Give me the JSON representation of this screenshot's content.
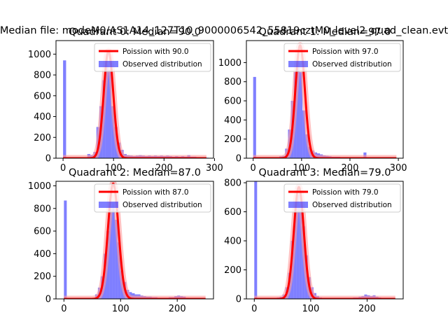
{
  "suptitle": "Median file: modeM0/AS1A14_127T10_9000006542_55819cztM0_level2_quad_clean.evt",
  "colors": {
    "observed": "#0000ff",
    "poisson": "#ff0000",
    "poisson_band": "#ff9999"
  },
  "chart_data": [
    {
      "type": "bar+line",
      "title": "Quadrant 0: Median=90.0",
      "median": 90.0,
      "xlim": [
        -14,
        298
      ],
      "ylim": [
        0,
        1130
      ],
      "xticks": [
        0,
        100,
        200,
        300
      ],
      "yticks": [
        0,
        200,
        400,
        600,
        800,
        1000
      ],
      "legend": [
        "Poission with 90.0",
        "Observed distribution"
      ],
      "legend_loc": "upper right",
      "poisson_peak": 1030,
      "bin_width": 6,
      "observed_bins": [
        [
          0,
          940
        ],
        [
          6,
          5
        ],
        [
          12,
          5
        ],
        [
          18,
          5
        ],
        [
          24,
          5
        ],
        [
          30,
          5
        ],
        [
          36,
          5
        ],
        [
          42,
          5
        ],
        [
          48,
          40
        ],
        [
          54,
          30
        ],
        [
          60,
          60
        ],
        [
          66,
          300
        ],
        [
          72,
          500
        ],
        [
          78,
          750
        ],
        [
          84,
          900
        ],
        [
          90,
          850
        ],
        [
          96,
          500
        ],
        [
          102,
          300
        ],
        [
          108,
          150
        ],
        [
          114,
          80
        ],
        [
          120,
          40
        ],
        [
          126,
          30
        ],
        [
          132,
          25
        ],
        [
          138,
          20
        ],
        [
          144,
          25
        ],
        [
          150,
          30
        ],
        [
          156,
          25
        ],
        [
          162,
          20
        ],
        [
          168,
          25
        ],
        [
          174,
          20
        ],
        [
          180,
          25
        ],
        [
          186,
          20
        ],
        [
          192,
          25
        ],
        [
          198,
          20
        ],
        [
          204,
          25
        ],
        [
          210,
          20
        ],
        [
          216,
          15
        ],
        [
          222,
          20
        ],
        [
          228,
          15
        ],
        [
          234,
          20
        ],
        [
          240,
          15
        ],
        [
          246,
          30
        ],
        [
          252,
          15
        ],
        [
          258,
          15
        ],
        [
          264,
          10
        ],
        [
          270,
          10
        ],
        [
          276,
          10
        ],
        [
          282,
          5
        ]
      ]
    },
    {
      "type": "bar+line",
      "title": "Quadrant 1: Median=97.0",
      "median": 97.0,
      "xlim": [
        -14,
        310
      ],
      "ylim": [
        0,
        1230
      ],
      "xticks": [
        0,
        100,
        200,
        300
      ],
      "yticks": [
        0,
        200,
        400,
        600,
        800,
        1000
      ],
      "legend": [
        "Poission with 97.0",
        "Observed distribution"
      ],
      "legend_loc": "upper right",
      "poisson_peak": 1180,
      "bin_width": 6,
      "observed_bins": [
        [
          0,
          850
        ],
        [
          6,
          5
        ],
        [
          12,
          5
        ],
        [
          18,
          5
        ],
        [
          24,
          5
        ],
        [
          30,
          5
        ],
        [
          36,
          5
        ],
        [
          42,
          5
        ],
        [
          48,
          5
        ],
        [
          54,
          20
        ],
        [
          60,
          25
        ],
        [
          66,
          100
        ],
        [
          72,
          300
        ],
        [
          78,
          600
        ],
        [
          84,
          900
        ],
        [
          90,
          1000
        ],
        [
          96,
          900
        ],
        [
          102,
          500
        ],
        [
          108,
          250
        ],
        [
          114,
          120
        ],
        [
          120,
          80
        ],
        [
          126,
          60
        ],
        [
          132,
          50
        ],
        [
          138,
          40
        ],
        [
          144,
          30
        ],
        [
          150,
          25
        ],
        [
          156,
          20
        ],
        [
          162,
          15
        ],
        [
          168,
          15
        ],
        [
          174,
          15
        ],
        [
          180,
          10
        ],
        [
          186,
          10
        ],
        [
          192,
          10
        ],
        [
          198,
          10
        ],
        [
          204,
          10
        ],
        [
          210,
          10
        ],
        [
          216,
          10
        ],
        [
          222,
          10
        ],
        [
          228,
          60
        ],
        [
          234,
          10
        ],
        [
          240,
          10
        ],
        [
          246,
          5
        ],
        [
          252,
          5
        ],
        [
          258,
          5
        ],
        [
          264,
          5
        ],
        [
          270,
          5
        ],
        [
          276,
          5
        ],
        [
          282,
          5
        ],
        [
          288,
          5
        ]
      ]
    },
    {
      "type": "bar+line",
      "title": "Quadrant 2: Median=87.0",
      "median": 87.0,
      "xlim": [
        -14,
        264
      ],
      "ylim": [
        0,
        1040
      ],
      "xticks": [
        0,
        100,
        200
      ],
      "yticks": [
        0,
        200,
        400,
        600,
        800,
        1000
      ],
      "legend": [
        "Poission with 87.0",
        "Observed distribution"
      ],
      "legend_loc": "upper right",
      "poisson_peak": 1020,
      "bin_width": 5,
      "observed_bins": [
        [
          0,
          870
        ],
        [
          5,
          5
        ],
        [
          10,
          5
        ],
        [
          15,
          5
        ],
        [
          20,
          5
        ],
        [
          25,
          5
        ],
        [
          30,
          5
        ],
        [
          35,
          5
        ],
        [
          40,
          5
        ],
        [
          45,
          5
        ],
        [
          50,
          5
        ],
        [
          55,
          40
        ],
        [
          60,
          100
        ],
        [
          65,
          200
        ],
        [
          70,
          400
        ],
        [
          75,
          600
        ],
        [
          80,
          820
        ],
        [
          85,
          850
        ],
        [
          90,
          700
        ],
        [
          95,
          500
        ],
        [
          100,
          250
        ],
        [
          105,
          150
        ],
        [
          110,
          80
        ],
        [
          115,
          60
        ],
        [
          120,
          50
        ],
        [
          125,
          40
        ],
        [
          130,
          40
        ],
        [
          135,
          30
        ],
        [
          140,
          25
        ],
        [
          145,
          20
        ],
        [
          150,
          20
        ],
        [
          155,
          15
        ],
        [
          160,
          15
        ],
        [
          165,
          10
        ],
        [
          170,
          10
        ],
        [
          175,
          10
        ],
        [
          180,
          10
        ],
        [
          185,
          15
        ],
        [
          190,
          15
        ],
        [
          195,
          25
        ],
        [
          200,
          30
        ],
        [
          205,
          25
        ],
        [
          210,
          20
        ],
        [
          215,
          10
        ],
        [
          220,
          5
        ],
        [
          225,
          5
        ],
        [
          230,
          5
        ],
        [
          235,
          5
        ],
        [
          240,
          5
        ]
      ]
    },
    {
      "type": "bar+line",
      "title": "Quadrant 3: Median=79.0",
      "median": 79.0,
      "xlim": [
        -14,
        264
      ],
      "ylim": [
        0,
        810
      ],
      "xticks": [
        0,
        100,
        200
      ],
      "yticks": [
        0,
        200,
        400,
        600,
        800
      ],
      "legend": [
        "Poission with 79.0",
        "Observed distribution"
      ],
      "legend_loc": "upper right",
      "poisson_peak": 770,
      "bin_width": 5,
      "observed_bins": [
        [
          0,
          810
        ],
        [
          5,
          5
        ],
        [
          10,
          5
        ],
        [
          15,
          5
        ],
        [
          20,
          5
        ],
        [
          25,
          5
        ],
        [
          30,
          5
        ],
        [
          35,
          5
        ],
        [
          40,
          10
        ],
        [
          45,
          15
        ],
        [
          50,
          30
        ],
        [
          55,
          80
        ],
        [
          60,
          180
        ],
        [
          65,
          400
        ],
        [
          70,
          600
        ],
        [
          75,
          720
        ],
        [
          80,
          650
        ],
        [
          85,
          500
        ],
        [
          90,
          300
        ],
        [
          95,
          150
        ],
        [
          100,
          80
        ],
        [
          105,
          40
        ],
        [
          110,
          20
        ],
        [
          115,
          10
        ],
        [
          120,
          5
        ],
        [
          125,
          5
        ],
        [
          130,
          5
        ],
        [
          135,
          5
        ],
        [
          140,
          5
        ],
        [
          145,
          5
        ],
        [
          150,
          5
        ],
        [
          155,
          5
        ],
        [
          160,
          5
        ],
        [
          165,
          5
        ],
        [
          170,
          5
        ],
        [
          175,
          10
        ],
        [
          180,
          10
        ],
        [
          185,
          15
        ],
        [
          190,
          20
        ],
        [
          195,
          30
        ],
        [
          200,
          25
        ],
        [
          205,
          20
        ],
        [
          210,
          25
        ],
        [
          215,
          15
        ],
        [
          220,
          10
        ],
        [
          225,
          5
        ],
        [
          230,
          5
        ],
        [
          235,
          5
        ],
        [
          240,
          5
        ]
      ]
    }
  ]
}
